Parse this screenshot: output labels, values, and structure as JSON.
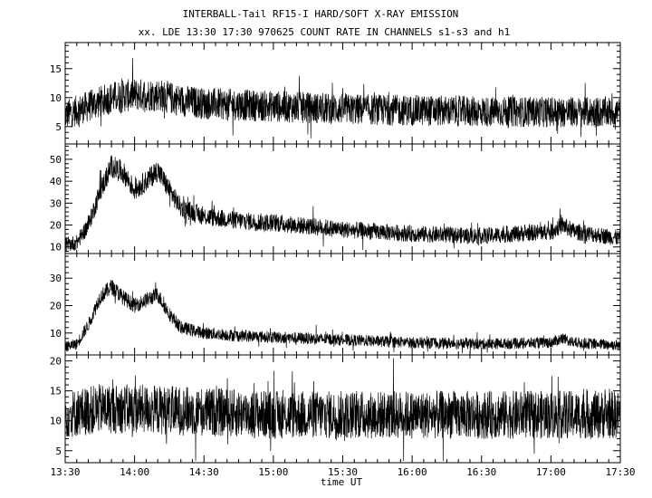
{
  "title": "INTERBALL-Tail RF15-I HARD/SOFT X-RAY EMISSION",
  "subtitle": "xx. LDE 13:30 17:30 970625  COUNT RATE IN CHANNELS s1-s3 and h1",
  "colors": {
    "trace": "#000000",
    "axes": "#000000",
    "background": "#ffffff"
  },
  "chart_data": {
    "type": "line",
    "title": "INTERBALL-Tail RF15-I HARD/SOFT X-RAY EMISSION",
    "subtitle": "xx. LDE 13:30 17:30 970625  COUNT RATE IN CHANNELS s1-s3 and h1",
    "xlabel": "time UT",
    "grid": false,
    "x_ticks": [
      "13:30",
      "14:00",
      "14:30",
      "15:00",
      "15:30",
      "16:00",
      "16:30",
      "17:00",
      "17:30"
    ],
    "xlim": [
      "13:30",
      "17:30"
    ],
    "panels": [
      {
        "ylim": [
          2,
          19.5
        ],
        "y_ticks": [
          5,
          10,
          15
        ],
        "noise_amplitude": 2.5,
        "envelope": [
          [
            "13:30",
            7.0
          ],
          [
            "13:40",
            8.5
          ],
          [
            "13:50",
            10.0
          ],
          [
            "14:00",
            10.5
          ],
          [
            "14:10",
            10.5
          ],
          [
            "14:20",
            9.5
          ],
          [
            "14:30",
            9.0
          ],
          [
            "15:00",
            8.5
          ],
          [
            "15:30",
            8.0
          ],
          [
            "16:00",
            7.8
          ],
          [
            "16:30",
            7.6
          ],
          [
            "17:00",
            7.5
          ],
          [
            "17:30",
            7.5
          ]
        ]
      },
      {
        "ylim": [
          7,
          57
        ],
        "y_ticks": [
          10,
          20,
          30,
          40,
          50
        ],
        "noise_amplitude": 3.0,
        "envelope": [
          [
            "13:30",
            11
          ],
          [
            "13:35",
            12
          ],
          [
            "13:40",
            20
          ],
          [
            "13:45",
            35
          ],
          [
            "13:50",
            47
          ],
          [
            "13:55",
            44
          ],
          [
            "14:00",
            36
          ],
          [
            "14:05",
            40
          ],
          [
            "14:10",
            45
          ],
          [
            "14:15",
            36
          ],
          [
            "14:20",
            28
          ],
          [
            "14:30",
            24
          ],
          [
            "14:45",
            22
          ],
          [
            "15:00",
            21
          ],
          [
            "15:30",
            18
          ],
          [
            "16:00",
            16
          ],
          [
            "16:30",
            15
          ],
          [
            "17:00",
            17
          ],
          [
            "17:05",
            20
          ],
          [
            "17:10",
            17
          ],
          [
            "17:30",
            14
          ]
        ]
      },
      {
        "ylim": [
          2,
          39
        ],
        "y_ticks": [
          10,
          20,
          30
        ],
        "noise_amplitude": 2.0,
        "envelope": [
          [
            "13:30",
            5
          ],
          [
            "13:35",
            6
          ],
          [
            "13:40",
            13
          ],
          [
            "13:45",
            23
          ],
          [
            "13:50",
            27
          ],
          [
            "13:55",
            23
          ],
          [
            "14:00",
            20
          ],
          [
            "14:05",
            22
          ],
          [
            "14:10",
            24
          ],
          [
            "14:15",
            17
          ],
          [
            "14:20",
            12
          ],
          [
            "14:30",
            10
          ],
          [
            "14:45",
            9
          ],
          [
            "15:00",
            8.5
          ],
          [
            "15:30",
            7.5
          ],
          [
            "16:00",
            6.5
          ],
          [
            "16:30",
            6
          ],
          [
            "17:00",
            6.5
          ],
          [
            "17:05",
            8
          ],
          [
            "17:10",
            6.5
          ],
          [
            "17:30",
            5.5
          ]
        ]
      },
      {
        "ylim": [
          3,
          21
        ],
        "y_ticks": [
          5,
          10,
          15,
          20
        ],
        "noise_amplitude": 3.5,
        "envelope": [
          [
            "13:30",
            11
          ],
          [
            "13:45",
            12
          ],
          [
            "14:00",
            12
          ],
          [
            "14:30",
            11.5
          ],
          [
            "15:00",
            11
          ],
          [
            "15:30",
            11
          ],
          [
            "16:00",
            11
          ],
          [
            "16:30",
            11
          ],
          [
            "17:00",
            11
          ],
          [
            "17:30",
            11
          ]
        ]
      }
    ]
  }
}
